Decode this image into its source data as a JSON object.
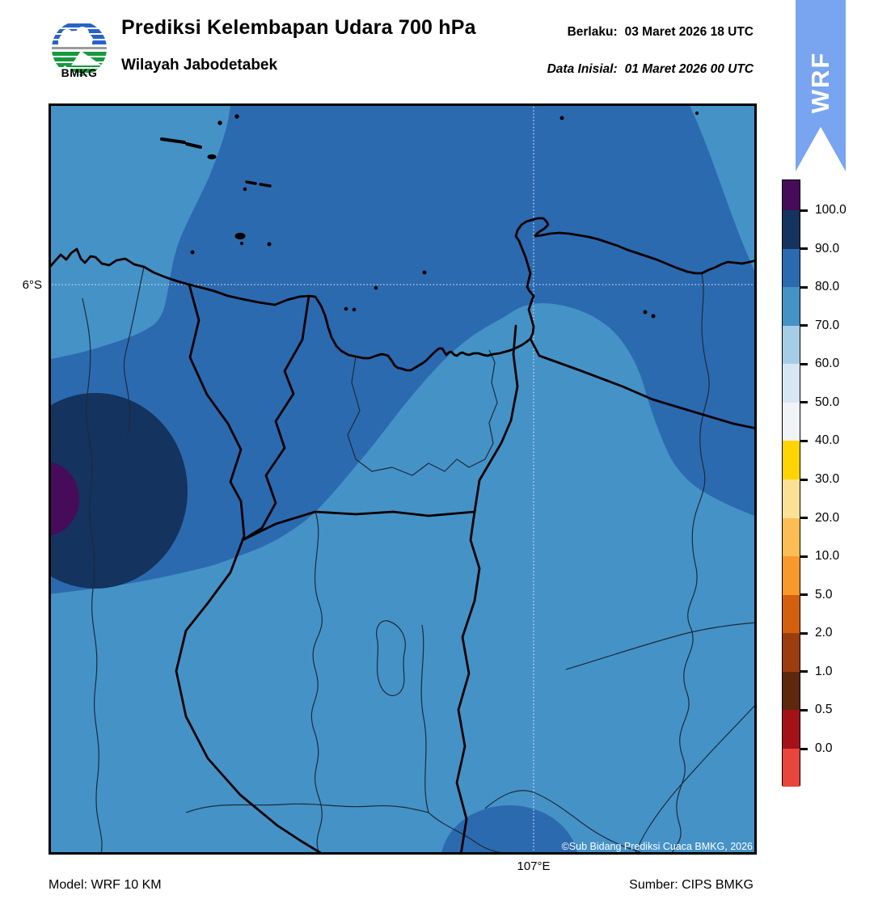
{
  "header": {
    "logo_text": "BMKG",
    "title": "Prediksi Kelembapan Udara 700 hPa",
    "subtitle": "Wilayah Jabodetabek",
    "valid_label": "Berlaku:",
    "valid_value": "03 Maret 2026 18 UTC",
    "init_label": "Data Inisial:",
    "init_value": "01 Maret 2026 00 UTC",
    "ribbon_text": "WRF"
  },
  "map": {
    "lat_label": "6°S",
    "lon_label": "107°E",
    "copyright": "©Sub Bidang Prediksi Cuaca BMKG, 2026"
  },
  "footer": {
    "model": "Model: WRF 10 KM",
    "source": "Sumber: CIPS BMKG"
  },
  "colors": {
    "ribbon_blue": "#78A4F0",
    "humidity_70_80": "#4592C7",
    "humidity_80_90": "#2C6AB0",
    "humidity_90_100": "#14335F",
    "humidity_gt_100": "#460C59",
    "gridline": "#ececec",
    "district_line": "#1c2b3a",
    "boundary_line": "#000000",
    "copyright_text": "#ffffff"
  },
  "colorbar": {
    "unit": "%",
    "tick_labels": [
      "100.0",
      "90.0",
      "80.0",
      "70.0",
      "60.0",
      "50.0",
      "40.0",
      "30.0",
      "20.0",
      "10.0",
      "5.0",
      "2.0",
      "1.0",
      "0.5",
      "0.0"
    ],
    "segment_colors_top_to_bottom": [
      "#460C59",
      "#14335F",
      "#2C6AB0",
      "#4592C7",
      "#A6CDE6",
      "#D6E6F3",
      "#F1F4F7",
      "#FFD400",
      "#FAE196",
      "#FCBE54",
      "#F8992B",
      "#D2600F",
      "#9C3D10",
      "#5E280C",
      "#A31218",
      "#E8453C"
    ]
  }
}
